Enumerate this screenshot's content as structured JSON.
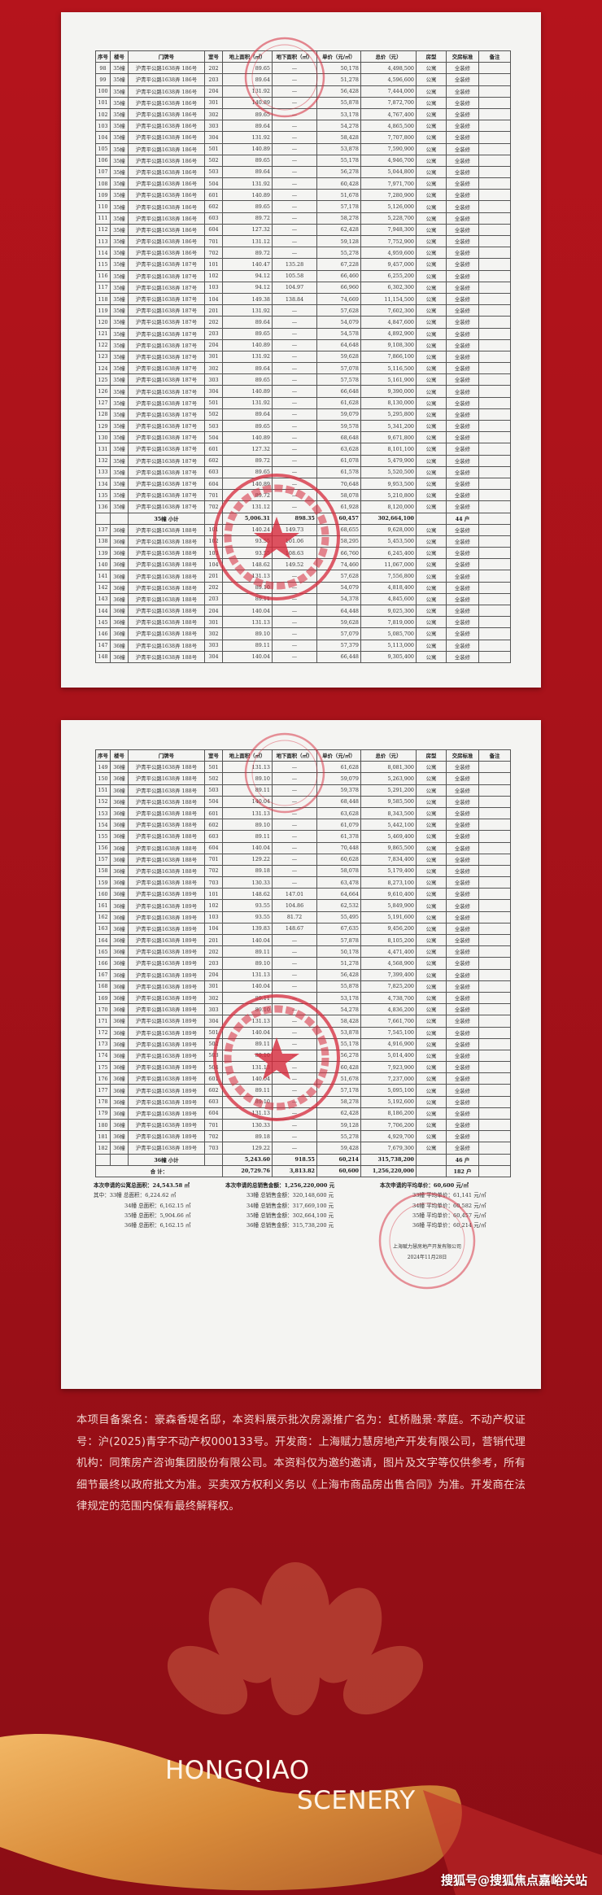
{
  "table_headers": [
    "序号",
    "楼号",
    "门牌号",
    "室号",
    "地上面积（㎡）",
    "地下面积（㎡）",
    "单价（元/㎡）",
    "总价（元）",
    "房型",
    "交房标准",
    "备注"
  ],
  "page1": {
    "rows": [
      [
        "98",
        "35幢",
        "沪青平公路1638弄 186号",
        "202",
        "89.65",
        "—",
        "50,178",
        "4,498,500",
        "公寓",
        "全装修",
        ""
      ],
      [
        "99",
        "35幢",
        "沪青平公路1638弄 186号",
        "203",
        "89.64",
        "—",
        "51,278",
        "4,596,600",
        "公寓",
        "全装修",
        ""
      ],
      [
        "100",
        "35幢",
        "沪青平公路1638弄 186号",
        "204",
        "131.92",
        "—",
        "56,428",
        "7,444,000",
        "公寓",
        "全装修",
        ""
      ],
      [
        "101",
        "35幢",
        "沪青平公路1638弄 186号",
        "301",
        "140.89",
        "—",
        "55,878",
        "7,872,700",
        "公寓",
        "全装修",
        ""
      ],
      [
        "102",
        "35幢",
        "沪青平公路1638弄 186号",
        "302",
        "89.65",
        "—",
        "53,178",
        "4,767,400",
        "公寓",
        "全装修",
        ""
      ],
      [
        "103",
        "35幢",
        "沪青平公路1638弄 186号",
        "303",
        "89.64",
        "—",
        "54,278",
        "4,865,500",
        "公寓",
        "全装修",
        ""
      ],
      [
        "104",
        "35幢",
        "沪青平公路1638弄 186号",
        "304",
        "131.92",
        "—",
        "58,428",
        "7,707,800",
        "公寓",
        "全装修",
        ""
      ],
      [
        "105",
        "35幢",
        "沪青平公路1638弄 186号",
        "501",
        "140.89",
        "—",
        "53,878",
        "7,590,900",
        "公寓",
        "全装修",
        ""
      ],
      [
        "106",
        "35幢",
        "沪青平公路1638弄 186号",
        "502",
        "89.65",
        "—",
        "55,178",
        "4,946,700",
        "公寓",
        "全装修",
        ""
      ],
      [
        "107",
        "35幢",
        "沪青平公路1638弄 186号",
        "503",
        "89.64",
        "—",
        "56,278",
        "5,044,800",
        "公寓",
        "全装修",
        ""
      ],
      [
        "108",
        "35幢",
        "沪青平公路1638弄 186号",
        "504",
        "131.92",
        "—",
        "60,428",
        "7,971,700",
        "公寓",
        "全装修",
        ""
      ],
      [
        "109",
        "35幢",
        "沪青平公路1638弄 186号",
        "601",
        "140.89",
        "—",
        "51,678",
        "7,280,900",
        "公寓",
        "全装修",
        ""
      ],
      [
        "110",
        "35幢",
        "沪青平公路1638弄 186号",
        "602",
        "89.65",
        "—",
        "57,178",
        "5,126,000",
        "公寓",
        "全装修",
        ""
      ],
      [
        "111",
        "35幢",
        "沪青平公路1638弄 186号",
        "603",
        "89.72",
        "—",
        "58,278",
        "5,228,700",
        "公寓",
        "全装修",
        ""
      ],
      [
        "112",
        "35幢",
        "沪青平公路1638弄 186号",
        "604",
        "127.32",
        "—",
        "62,428",
        "7,948,300",
        "公寓",
        "全装修",
        ""
      ],
      [
        "113",
        "35幢",
        "沪青平公路1638弄 186号",
        "701",
        "131.12",
        "—",
        "59,128",
        "7,752,900",
        "公寓",
        "全装修",
        ""
      ],
      [
        "114",
        "35幢",
        "沪青平公路1638弄 186号",
        "702",
        "89.72",
        "—",
        "55,278",
        "4,959,600",
        "公寓",
        "全装修",
        ""
      ],
      [
        "115",
        "35幢",
        "沪青平公路1638弄 187号",
        "101",
        "140.47",
        "135.28",
        "67,228",
        "9,457,000",
        "公寓",
        "全装修",
        ""
      ],
      [
        "116",
        "35幢",
        "沪青平公路1638弄 187号",
        "102",
        "94.12",
        "105.58",
        "66,460",
        "6,255,200",
        "公寓",
        "全装修",
        ""
      ],
      [
        "117",
        "35幢",
        "沪青平公路1638弄 187号",
        "103",
        "94.12",
        "104.97",
        "66,960",
        "6,302,300",
        "公寓",
        "全装修",
        ""
      ],
      [
        "118",
        "35幢",
        "沪青平公路1638弄 187号",
        "104",
        "149.38",
        "138.84",
        "74,669",
        "11,154,500",
        "公寓",
        "全装修",
        ""
      ],
      [
        "119",
        "35幢",
        "沪青平公路1638弄 187号",
        "201",
        "131.92",
        "—",
        "57,628",
        "7,602,300",
        "公寓",
        "全装修",
        ""
      ],
      [
        "120",
        "35幢",
        "沪青平公路1638弄 187号",
        "202",
        "89.64",
        "—",
        "54,079",
        "4,847,600",
        "公寓",
        "全装修",
        ""
      ],
      [
        "121",
        "35幢",
        "沪青平公路1638弄 187号",
        "203",
        "89.65",
        "—",
        "54,578",
        "4,892,900",
        "公寓",
        "全装修",
        ""
      ],
      [
        "122",
        "35幢",
        "沪青平公路1638弄 187号",
        "204",
        "140.89",
        "—",
        "64,648",
        "9,108,300",
        "公寓",
        "全装修",
        ""
      ],
      [
        "123",
        "35幢",
        "沪青平公路1638弄 187号",
        "301",
        "131.92",
        "—",
        "59,628",
        "7,866,100",
        "公寓",
        "全装修",
        ""
      ],
      [
        "124",
        "35幢",
        "沪青平公路1638弄 187号",
        "302",
        "89.64",
        "—",
        "57,078",
        "5,116,500",
        "公寓",
        "全装修",
        ""
      ],
      [
        "125",
        "35幢",
        "沪青平公路1638弄 187号",
        "303",
        "89.65",
        "—",
        "57,578",
        "5,161,900",
        "公寓",
        "全装修",
        ""
      ],
      [
        "126",
        "35幢",
        "沪青平公路1638弄 187号",
        "304",
        "140.89",
        "—",
        "66,648",
        "9,390,000",
        "公寓",
        "全装修",
        ""
      ],
      [
        "127",
        "35幢",
        "沪青平公路1638弄 187号",
        "501",
        "131.92",
        "—",
        "61,628",
        "8,130,000",
        "公寓",
        "全装修",
        ""
      ],
      [
        "128",
        "35幢",
        "沪青平公路1638弄 187号",
        "502",
        "89.64",
        "—",
        "59,079",
        "5,295,800",
        "公寓",
        "全装修",
        ""
      ],
      [
        "129",
        "35幢",
        "沪青平公路1638弄 187号",
        "503",
        "89.65",
        "—",
        "59,578",
        "5,341,200",
        "公寓",
        "全装修",
        ""
      ],
      [
        "130",
        "35幢",
        "沪青平公路1638弄 187号",
        "504",
        "140.89",
        "—",
        "68,648",
        "9,671,800",
        "公寓",
        "全装修",
        ""
      ],
      [
        "131",
        "35幢",
        "沪青平公路1638弄 187号",
        "601",
        "127.32",
        "—",
        "63,628",
        "8,101,100",
        "公寓",
        "全装修",
        ""
      ],
      [
        "132",
        "35幢",
        "沪青平公路1638弄 187号",
        "602",
        "89.72",
        "—",
        "61,078",
        "5,479,900",
        "公寓",
        "全装修",
        ""
      ],
      [
        "133",
        "35幢",
        "沪青平公路1638弄 187号",
        "603",
        "89.65",
        "—",
        "61,578",
        "5,520,500",
        "公寓",
        "全装修",
        ""
      ],
      [
        "134",
        "35幢",
        "沪青平公路1638弄 187号",
        "604",
        "140.89",
        "—",
        "70,648",
        "9,953,500",
        "公寓",
        "全装修",
        ""
      ],
      [
        "135",
        "35幢",
        "沪青平公路1638弄 187号",
        "701",
        "89.72",
        "—",
        "58,078",
        "5,210,800",
        "公寓",
        "全装修",
        ""
      ],
      [
        "136",
        "35幢",
        "沪青平公路1638弄 187号",
        "702",
        "131.12",
        "—",
        "61,928",
        "8,120,000",
        "公寓",
        "全装修",
        ""
      ],
      {
        "subtotal": true,
        "label": "35幢 小计",
        "above": "5,006.31",
        "below": "898.35",
        "price": "60,457",
        "total": "302,664,100",
        "count": "44 户"
      },
      [
        "137",
        "36幢",
        "沪青平公路1638弄 188号",
        "101",
        "140.24",
        "149.73",
        "68,655",
        "9,628,000",
        "公寓",
        "全装修",
        ""
      ],
      [
        "138",
        "36幢",
        "沪青平公路1638弄 188号",
        "102",
        "93.55",
        "101.06",
        "58,295",
        "5,453,500",
        "公寓",
        "全装修",
        ""
      ],
      [
        "139",
        "36幢",
        "沪青平公路1638弄 188号",
        "103",
        "93.55",
        "108.63",
        "66,760",
        "6,245,400",
        "公寓",
        "全装修",
        ""
      ],
      [
        "140",
        "36幢",
        "沪青平公路1638弄 188号",
        "104",
        "148.62",
        "149.52",
        "74,460",
        "11,067,000",
        "公寓",
        "全装修",
        ""
      ],
      [
        "141",
        "36幢",
        "沪青平公路1638弄 188号",
        "201",
        "131.13",
        "—",
        "57,628",
        "7,556,800",
        "公寓",
        "全装修",
        ""
      ],
      [
        "142",
        "36幢",
        "沪青平公路1638弄 188号",
        "202",
        "89.10",
        "—",
        "54,079",
        "4,818,400",
        "公寓",
        "全装修",
        ""
      ],
      [
        "143",
        "36幢",
        "沪青平公路1638弄 188号",
        "203",
        "89.11",
        "—",
        "54,378",
        "4,845,600",
        "公寓",
        "全装修",
        ""
      ],
      [
        "144",
        "36幢",
        "沪青平公路1638弄 188号",
        "204",
        "140.04",
        "—",
        "64,448",
        "9,025,300",
        "公寓",
        "全装修",
        ""
      ],
      [
        "145",
        "36幢",
        "沪青平公路1638弄 188号",
        "301",
        "131.13",
        "—",
        "59,628",
        "7,819,000",
        "公寓",
        "全装修",
        ""
      ],
      [
        "146",
        "36幢",
        "沪青平公路1638弄 188号",
        "302",
        "89.10",
        "—",
        "57,079",
        "5,085,700",
        "公寓",
        "全装修",
        ""
      ],
      [
        "147",
        "36幢",
        "沪青平公路1638弄 188号",
        "303",
        "89.11",
        "—",
        "57,379",
        "5,113,000",
        "公寓",
        "全装修",
        ""
      ],
      [
        "148",
        "36幢",
        "沪青平公路1638弄 188号",
        "304",
        "140.04",
        "—",
        "66,448",
        "9,305,400",
        "公寓",
        "全装修",
        ""
      ]
    ]
  },
  "page2": {
    "rows": [
      [
        "149",
        "36幢",
        "沪青平公路1638弄 188号",
        "501",
        "131.13",
        "—",
        "61,628",
        "8,081,300",
        "公寓",
        "全装修",
        ""
      ],
      [
        "150",
        "36幢",
        "沪青平公路1638弄 188号",
        "502",
        "89.10",
        "—",
        "59,079",
        "5,263,900",
        "公寓",
        "全装修",
        ""
      ],
      [
        "151",
        "36幢",
        "沪青平公路1638弄 188号",
        "503",
        "89.11",
        "—",
        "59,378",
        "5,291,200",
        "公寓",
        "全装修",
        ""
      ],
      [
        "152",
        "36幢",
        "沪青平公路1638弄 188号",
        "504",
        "140.04",
        "—",
        "68,448",
        "9,585,500",
        "公寓",
        "全装修",
        ""
      ],
      [
        "153",
        "36幢",
        "沪青平公路1638弄 188号",
        "601",
        "131.13",
        "—",
        "63,628",
        "8,343,500",
        "公寓",
        "全装修",
        ""
      ],
      [
        "154",
        "36幢",
        "沪青平公路1638弄 188号",
        "602",
        "89.10",
        "—",
        "61,079",
        "5,442,100",
        "公寓",
        "全装修",
        ""
      ],
      [
        "155",
        "36幢",
        "沪青平公路1638弄 188号",
        "603",
        "89.11",
        "—",
        "61,378",
        "5,469,400",
        "公寓",
        "全装修",
        ""
      ],
      [
        "156",
        "36幢",
        "沪青平公路1638弄 188号",
        "604",
        "140.04",
        "—",
        "70,448",
        "9,865,500",
        "公寓",
        "全装修",
        ""
      ],
      [
        "157",
        "36幢",
        "沪青平公路1638弄 188号",
        "701",
        "129.22",
        "—",
        "60,628",
        "7,834,400",
        "公寓",
        "全装修",
        ""
      ],
      [
        "158",
        "36幢",
        "沪青平公路1638弄 188号",
        "702",
        "89.18",
        "—",
        "58,078",
        "5,179,400",
        "公寓",
        "全装修",
        ""
      ],
      [
        "159",
        "36幢",
        "沪青平公路1638弄 188号",
        "703",
        "130.33",
        "—",
        "63,478",
        "8,273,100",
        "公寓",
        "全装修",
        ""
      ],
      [
        "160",
        "36幢",
        "沪青平公路1638弄 189号",
        "101",
        "148.62",
        "147.01",
        "64,664",
        "9,610,400",
        "公寓",
        "全装修",
        ""
      ],
      [
        "161",
        "36幢",
        "沪青平公路1638弄 189号",
        "102",
        "93.55",
        "104.86",
        "62,532",
        "5,849,900",
        "公寓",
        "全装修",
        ""
      ],
      [
        "162",
        "36幢",
        "沪青平公路1638弄 189号",
        "103",
        "93.55",
        "81.72",
        "55,495",
        "5,191,600",
        "公寓",
        "全装修",
        ""
      ],
      [
        "163",
        "36幢",
        "沪青平公路1638弄 189号",
        "104",
        "139.83",
        "148.67",
        "67,635",
        "9,456,200",
        "公寓",
        "全装修",
        ""
      ],
      [
        "164",
        "36幢",
        "沪青平公路1638弄 189号",
        "201",
        "140.04",
        "—",
        "57,878",
        "8,105,200",
        "公寓",
        "全装修",
        ""
      ],
      [
        "165",
        "36幢",
        "沪青平公路1638弄 189号",
        "202",
        "89.11",
        "—",
        "50,178",
        "4,471,400",
        "公寓",
        "全装修",
        ""
      ],
      [
        "166",
        "36幢",
        "沪青平公路1638弄 189号",
        "203",
        "89.10",
        "—",
        "51,278",
        "4,568,900",
        "公寓",
        "全装修",
        ""
      ],
      [
        "167",
        "36幢",
        "沪青平公路1638弄 189号",
        "204",
        "131.13",
        "—",
        "56,428",
        "7,399,400",
        "公寓",
        "全装修",
        ""
      ],
      [
        "168",
        "36幢",
        "沪青平公路1638弄 189号",
        "301",
        "140.04",
        "—",
        "55,878",
        "7,825,200",
        "公寓",
        "全装修",
        ""
      ],
      [
        "169",
        "36幢",
        "沪青平公路1638弄 189号",
        "302",
        "89.11",
        "—",
        "53,178",
        "4,738,700",
        "公寓",
        "全装修",
        ""
      ],
      [
        "170",
        "36幢",
        "沪青平公路1638弄 189号",
        "303",
        "89.10",
        "—",
        "54,278",
        "4,836,200",
        "公寓",
        "全装修",
        ""
      ],
      [
        "171",
        "36幢",
        "沪青平公路1638弄 189号",
        "304",
        "131.13",
        "—",
        "58,428",
        "7,661,700",
        "公寓",
        "全装修",
        ""
      ],
      [
        "172",
        "36幢",
        "沪青平公路1638弄 189号",
        "501",
        "140.04",
        "—",
        "53,878",
        "7,545,100",
        "公寓",
        "全装修",
        ""
      ],
      [
        "173",
        "36幢",
        "沪青平公路1638弄 189号",
        "502",
        "89.11",
        "—",
        "55,178",
        "4,916,900",
        "公寓",
        "全装修",
        ""
      ],
      [
        "174",
        "36幢",
        "沪青平公路1638弄 189号",
        "503",
        "89.10",
        "—",
        "56,278",
        "5,014,400",
        "公寓",
        "全装修",
        ""
      ],
      [
        "175",
        "36幢",
        "沪青平公路1638弄 189号",
        "504",
        "131.13",
        "—",
        "60,428",
        "7,923,900",
        "公寓",
        "全装修",
        ""
      ],
      [
        "176",
        "36幢",
        "沪青平公路1638弄 189号",
        "601",
        "140.04",
        "—",
        "51,678",
        "7,237,000",
        "公寓",
        "全装修",
        ""
      ],
      [
        "177",
        "36幢",
        "沪青平公路1638弄 189号",
        "602",
        "89.11",
        "—",
        "57,178",
        "5,095,100",
        "公寓",
        "全装修",
        ""
      ],
      [
        "178",
        "36幢",
        "沪青平公路1638弄 189号",
        "603",
        "89.10",
        "—",
        "58,278",
        "5,192,600",
        "公寓",
        "全装修",
        ""
      ],
      [
        "179",
        "36幢",
        "沪青平公路1638弄 189号",
        "604",
        "131.13",
        "—",
        "62,428",
        "8,186,200",
        "公寓",
        "全装修",
        ""
      ],
      [
        "180",
        "36幢",
        "沪青平公路1638弄 189号",
        "701",
        "130.33",
        "—",
        "59,128",
        "7,706,200",
        "公寓",
        "全装修",
        ""
      ],
      [
        "181",
        "36幢",
        "沪青平公路1638弄 189号",
        "702",
        "89.18",
        "—",
        "55,278",
        "4,929,700",
        "公寓",
        "全装修",
        ""
      ],
      [
        "182",
        "36幢",
        "沪青平公路1638弄 189号",
        "703",
        "129.22",
        "—",
        "59,428",
        "7,679,300",
        "公寓",
        "全装修",
        ""
      ],
      {
        "subtotal": true,
        "label": "36幢 小计",
        "above": "5,243.60",
        "below": "918.55",
        "price": "60,214",
        "total": "315,738,200",
        "count": "46 户"
      },
      {
        "grandtotal": true,
        "label": "合 计：",
        "above": "20,729.76",
        "below": "3,813.82",
        "price": "60,600",
        "total": "1,256,220,000",
        "count": "182 户"
      }
    ]
  },
  "summary": {
    "area": {
      "heading": "本次申请的公寓总面积：24,543.58 ㎡",
      "lines": [
        "其中：33幢  总面积：6,224.62 ㎡",
        "34幢  总面积：6,162.15 ㎡",
        "35幢  总面积：5,904.66 ㎡",
        "36幢  总面积：6,162.15 ㎡"
      ]
    },
    "amount": {
      "heading": "本次申请的总销售金额：1,256,220,000 元",
      "lines": [
        "33幢  总销售金额：320,148,600 元",
        "34幢  总销售金额：317,669,100 元",
        "35幢  总销售金额：302,664,100 元",
        "36幢  总销售金额：315,738,200 元"
      ]
    },
    "price": {
      "heading": "本次申请的平均单价：60,600 元/㎡",
      "lines": [
        "33幢  平均单价：61,141 元/㎡",
        "34幢  平均单价：60,582 元/㎡",
        "35幢  平均单价：60,457 元/㎡",
        "36幢  平均单价：60,214 元/㎡"
      ]
    },
    "company": "上海赋力慧房地产开发有限公司",
    "date": "2024年11月28日"
  },
  "notice": "本项目备案名：豪森香堤名邸，本资料展示批次房源推广名为：虹桥融景·萃庭。不动产权证号：沪(2025)青字不动产权000133号。开发商：上海赋力慧房地产开发有限公司，营销代理机构：同策房产咨询集团股份有限公司。本资料仅为邀约邀请，图片及文字等仅供参考，所有细节最终以政府批文为准。买卖双方权利义务以《上海市商品房出售合同》为准。开发商在法律规定的范围内保有最终解释权。",
  "brand": {
    "line1": "HONGQIAO",
    "line2": "SCENERY"
  },
  "watermark": "搜狐号@搜狐焦点嘉峪关站",
  "colors": {
    "background": "#a8121a",
    "stamp": "#d6283a",
    "gold": "#e0a050"
  }
}
